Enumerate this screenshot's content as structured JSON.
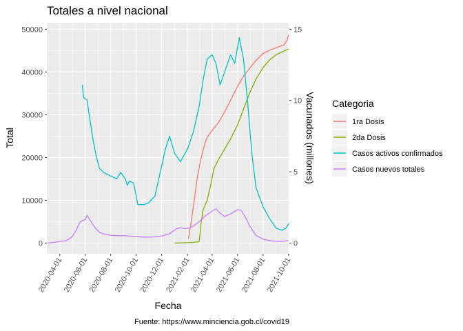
{
  "chart_data": {
    "type": "line",
    "title": "Totales a nivel nacional",
    "xlabel": "Fecha",
    "ylabel": "Total",
    "y2label": "Vacunados (millones)",
    "caption": "Fuente: https://www.minciencia.gob.cl/covid19",
    "legend_title": "Categoria",
    "legend_position": "right",
    "grid": true,
    "xlim": [
      "2020-03-01",
      "2021-10-03"
    ],
    "ylim": [
      -2500,
      51500
    ],
    "y2lim": [
      -0.75,
      15.45
    ],
    "x_ticks": [
      "2020-04-01",
      "2020-06-01",
      "2020-08-01",
      "2020-10-01",
      "2020-12-01",
      "2021-02-01",
      "2021-04-01",
      "2021-06-01",
      "2021-08-01",
      "2021-10-01"
    ],
    "y_ticks": [
      "0",
      "10000",
      "20000",
      "30000",
      "40000",
      "50000"
    ],
    "y2_ticks": [
      "0",
      "5",
      "10",
      "15"
    ],
    "series": [
      {
        "name": "1ra Dosis",
        "color": "#F8766D",
        "axis": "right",
        "points": [
          [
            "2021-02-03",
            0.3
          ],
          [
            "2021-02-10",
            1.5
          ],
          [
            "2021-02-17",
            3.0
          ],
          [
            "2021-02-24",
            4.5
          ],
          [
            "2021-03-03",
            5.6
          ],
          [
            "2021-03-10",
            6.5
          ],
          [
            "2021-03-17",
            7.2
          ],
          [
            "2021-03-24",
            7.6
          ],
          [
            "2021-04-01",
            7.9
          ],
          [
            "2021-04-15",
            8.4
          ],
          [
            "2021-05-01",
            9.2
          ],
          [
            "2021-05-15",
            10.0
          ],
          [
            "2021-06-01",
            11.0
          ],
          [
            "2021-06-15",
            11.7
          ],
          [
            "2021-07-01",
            12.3
          ],
          [
            "2021-07-15",
            12.8
          ],
          [
            "2021-08-01",
            13.3
          ],
          [
            "2021-08-15",
            13.5
          ],
          [
            "2021-09-01",
            13.7
          ],
          [
            "2021-09-20",
            13.9
          ],
          [
            "2021-09-27",
            14.2
          ],
          [
            "2021-10-01",
            14.6
          ]
        ]
      },
      {
        "name": "2da Dosis",
        "color": "#7CAE00",
        "axis": "right",
        "points": [
          [
            "2021-01-01",
            0.0
          ],
          [
            "2021-02-15",
            0.05
          ],
          [
            "2021-03-01",
            0.1
          ],
          [
            "2021-03-05",
            1.3
          ],
          [
            "2021-03-10",
            2.3
          ],
          [
            "2021-03-20",
            3.0
          ],
          [
            "2021-03-28",
            4.0
          ],
          [
            "2021-04-05",
            5.2
          ],
          [
            "2021-04-15",
            5.8
          ],
          [
            "2021-05-01",
            6.6
          ],
          [
            "2021-05-15",
            7.3
          ],
          [
            "2021-06-01",
            8.3
          ],
          [
            "2021-06-15",
            9.4
          ],
          [
            "2021-07-01",
            10.6
          ],
          [
            "2021-07-15",
            11.5
          ],
          [
            "2021-08-01",
            12.3
          ],
          [
            "2021-08-15",
            12.8
          ],
          [
            "2021-09-01",
            13.2
          ],
          [
            "2021-09-15",
            13.4
          ],
          [
            "2021-10-01",
            13.6
          ]
        ]
      },
      {
        "name": "Casos activos confirmados",
        "color": "#00BFC4",
        "axis": "left",
        "points": [
          [
            "2020-05-25",
            37000
          ],
          [
            "2020-05-28",
            34000
          ],
          [
            "2020-06-05",
            33500
          ],
          [
            "2020-06-12",
            29000
          ],
          [
            "2020-06-20",
            24000
          ],
          [
            "2020-06-28",
            20000
          ],
          [
            "2020-07-05",
            17500
          ],
          [
            "2020-07-15",
            16500
          ],
          [
            "2020-07-25",
            16000
          ],
          [
            "2020-08-05",
            15500
          ],
          [
            "2020-08-15",
            15000
          ],
          [
            "2020-08-25",
            16500
          ],
          [
            "2020-09-05",
            15000
          ],
          [
            "2020-09-10",
            13500
          ],
          [
            "2020-09-15",
            14500
          ],
          [
            "2020-09-25",
            14000
          ],
          [
            "2020-10-05",
            9000
          ],
          [
            "2020-10-20",
            9000
          ],
          [
            "2020-11-01",
            9500
          ],
          [
            "2020-11-15",
            11000
          ],
          [
            "2020-12-01",
            18000
          ],
          [
            "2020-12-10",
            22000
          ],
          [
            "2020-12-20",
            25000
          ],
          [
            "2021-01-01",
            21000
          ],
          [
            "2021-01-15",
            19000
          ],
          [
            "2021-02-01",
            22000
          ],
          [
            "2021-02-15",
            26000
          ],
          [
            "2021-03-01",
            32000
          ],
          [
            "2021-03-10",
            38000
          ],
          [
            "2021-03-20",
            43000
          ],
          [
            "2021-04-01",
            44000
          ],
          [
            "2021-04-10",
            42000
          ],
          [
            "2021-04-20",
            37000
          ],
          [
            "2021-05-01",
            40000
          ],
          [
            "2021-05-15",
            44000
          ],
          [
            "2021-05-25",
            42000
          ],
          [
            "2021-06-05",
            48000
          ],
          [
            "2021-06-15",
            43000
          ],
          [
            "2021-06-25",
            33000
          ],
          [
            "2021-07-05",
            21000
          ],
          [
            "2021-07-15",
            13000
          ],
          [
            "2021-08-01",
            8500
          ],
          [
            "2021-08-15",
            6000
          ],
          [
            "2021-09-01",
            3500
          ],
          [
            "2021-09-15",
            3000
          ],
          [
            "2021-09-25",
            3500
          ],
          [
            "2021-10-01",
            4500
          ]
        ]
      },
      {
        "name": "Casos nuevos totales",
        "color": "#C77CFF",
        "axis": "left",
        "points": [
          [
            "2020-03-03",
            0
          ],
          [
            "2020-03-20",
            200
          ],
          [
            "2020-04-01",
            400
          ],
          [
            "2020-04-15",
            500
          ],
          [
            "2020-05-01",
            1500
          ],
          [
            "2020-05-10",
            3000
          ],
          [
            "2020-05-20",
            5000
          ],
          [
            "2020-06-01",
            5500
          ],
          [
            "2020-06-05",
            6500
          ],
          [
            "2020-06-15",
            5000
          ],
          [
            "2020-06-25",
            3500
          ],
          [
            "2020-07-05",
            2500
          ],
          [
            "2020-07-20",
            2000
          ],
          [
            "2020-08-05",
            1800
          ],
          [
            "2020-08-20",
            1700
          ],
          [
            "2020-09-05",
            1700
          ],
          [
            "2020-09-20",
            1600
          ],
          [
            "2020-10-05",
            1500
          ],
          [
            "2020-10-20",
            1400
          ],
          [
            "2020-11-05",
            1400
          ],
          [
            "2020-11-20",
            1500
          ],
          [
            "2020-12-05",
            1700
          ],
          [
            "2020-12-20",
            2200
          ],
          [
            "2021-01-05",
            3300
          ],
          [
            "2021-01-15",
            3600
          ],
          [
            "2021-01-25",
            3400
          ],
          [
            "2021-02-05",
            3500
          ],
          [
            "2021-02-15",
            4000
          ],
          [
            "2021-03-01",
            5000
          ],
          [
            "2021-03-15",
            6300
          ],
          [
            "2021-04-01",
            7500
          ],
          [
            "2021-04-10",
            8000
          ],
          [
            "2021-04-20",
            7000
          ],
          [
            "2021-05-01",
            6200
          ],
          [
            "2021-05-15",
            6800
          ],
          [
            "2021-06-01",
            7800
          ],
          [
            "2021-06-10",
            7600
          ],
          [
            "2021-06-20",
            6000
          ],
          [
            "2021-07-01",
            3800
          ],
          [
            "2021-07-15",
            1800
          ],
          [
            "2021-08-01",
            900
          ],
          [
            "2021-08-15",
            600
          ],
          [
            "2021-09-01",
            400
          ],
          [
            "2021-09-15",
            400
          ],
          [
            "2021-10-01",
            600
          ]
        ]
      }
    ]
  }
}
